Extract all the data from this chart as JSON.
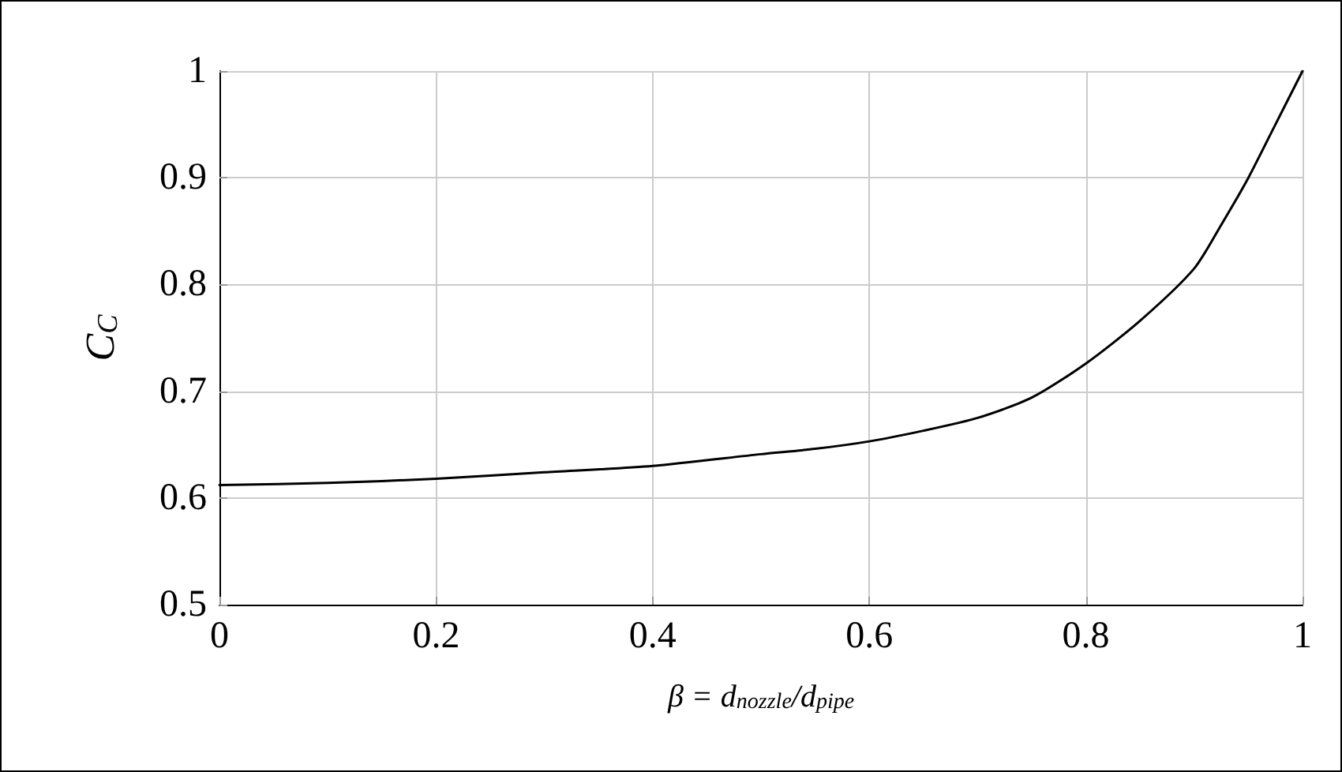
{
  "chart_data": {
    "type": "line",
    "xlabel": "β = d$_{nozzle}$/d$_{pipe}$",
    "ylabel": "C$_{C}$",
    "x": [
      0,
      0.1,
      0.2,
      0.3,
      0.4,
      0.5,
      0.55,
      0.6,
      0.65,
      0.7,
      0.75,
      0.8,
      0.85,
      0.9,
      0.925,
      0.95,
      0.975,
      1
    ],
    "series": [
      {
        "color": "#000000",
        "values": [
          0.612,
          0.614,
          0.618,
          0.624,
          0.63,
          0.641,
          0.646,
          0.653,
          0.663,
          0.675,
          0.694,
          0.726,
          0.766,
          0.815,
          0.856,
          0.9,
          0.95,
          1
        ]
      }
    ],
    "xlim": [
      0,
      1
    ],
    "xticks": [
      0,
      0.2,
      0.4,
      0.6,
      0.8,
      1
    ],
    "ylim": [
      0.5,
      1
    ],
    "yticks": [
      0.5,
      0.6,
      0.7,
      0.8,
      0.9,
      1
    ],
    "grid": true,
    "marker": "none",
    "line_style": "solid"
  }
}
